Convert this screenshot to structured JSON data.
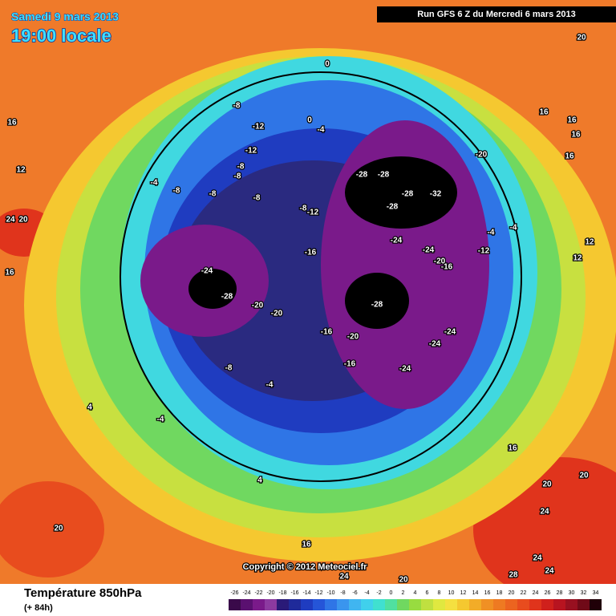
{
  "header": {
    "date": "Samedi 9 mars 2013",
    "time": "19:00 locale",
    "run": "Run GFS 6 Z du Mercredi 6 mars 2013"
  },
  "copyright": "Copyright © 2012 Meteociel.fr",
  "footer": {
    "title": "Température 850hPa",
    "lead": "(+ 84h)"
  },
  "map_labels": [
    20,
    0,
    -8,
    -12,
    -12,
    -8,
    -8,
    -4,
    -8,
    -8,
    -8,
    0,
    -4,
    -8,
    -12,
    -20,
    -28,
    -28,
    -28,
    -32,
    -28,
    -24,
    -24,
    -20,
    -16,
    -16,
    -24,
    -28,
    -20,
    -20,
    -28,
    -16,
    -20,
    -24,
    -24,
    -24,
    -16,
    -8,
    -4,
    -4,
    4,
    4,
    16,
    12,
    24,
    20,
    16,
    20,
    16,
    24,
    20,
    28,
    24,
    24,
    24,
    20,
    20,
    16,
    16,
    16,
    16,
    16,
    12,
    12,
    -12,
    -4,
    -4
  ],
  "colorbar": {
    "ticks": [
      -26,
      -24,
      -22,
      -20,
      -18,
      -16,
      -14,
      -12,
      -10,
      -8,
      -6,
      -4,
      -2,
      0,
      2,
      4,
      6,
      8,
      10,
      12,
      14,
      16,
      18,
      20,
      22,
      24,
      26,
      28,
      30,
      32,
      34
    ],
    "colors": [
      "#3a0a4a",
      "#5a1070",
      "#7a1a8a",
      "#8c3aa0",
      "#2a1a78",
      "#1f2a9a",
      "#1f3cc0",
      "#2555d8",
      "#2f75e6",
      "#3a95ee",
      "#40b5f0",
      "#40d0ec",
      "#40e0d0",
      "#50e0a0",
      "#70d860",
      "#98dc40",
      "#c0e040",
      "#e0e840",
      "#f5e040",
      "#f5c830",
      "#f2ac28",
      "#f09024",
      "#ee7a22",
      "#ec6420",
      "#e84c1e",
      "#e0341c",
      "#d0201c",
      "#b81420",
      "#981020",
      "#700a18",
      "#200008"
    ]
  }
}
